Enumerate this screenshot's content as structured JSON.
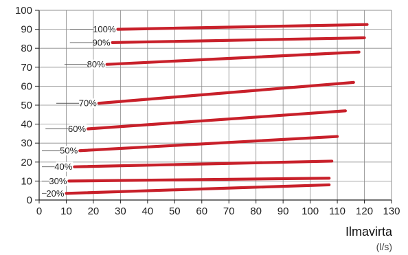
{
  "chart_data": {
    "type": "line",
    "xlabel": "Ilmavirta",
    "xunit": "(l/s)",
    "ylabel": "",
    "xlim": [
      0,
      130
    ],
    "ylim": [
      0,
      100
    ],
    "xticks": [
      0,
      10,
      20,
      30,
      40,
      50,
      60,
      70,
      80,
      90,
      100,
      110,
      120,
      130
    ],
    "yticks": [
      0,
      10,
      20,
      30,
      40,
      50,
      60,
      70,
      80,
      90,
      100
    ],
    "grid": true,
    "line_color": "#c8202a",
    "series": [
      {
        "name": "20%",
        "x": [
          10,
          107
        ],
        "y": [
          3.5,
          8.0
        ]
      },
      {
        "name": "30%",
        "x": [
          11,
          107
        ],
        "y": [
          10.0,
          11.5
        ]
      },
      {
        "name": "40%",
        "x": [
          13,
          108
        ],
        "y": [
          17.5,
          20.5
        ]
      },
      {
        "name": "50%",
        "x": [
          15,
          110
        ],
        "y": [
          26.0,
          33.5
        ]
      },
      {
        "name": "60%",
        "x": [
          18,
          113
        ],
        "y": [
          37.5,
          47.0
        ]
      },
      {
        "name": "70%",
        "x": [
          22,
          116
        ],
        "y": [
          51.0,
          62.0
        ]
      },
      {
        "name": "80%",
        "x": [
          25,
          118
        ],
        "y": [
          71.5,
          78.0
        ]
      },
      {
        "name": "90%",
        "x": [
          27,
          120
        ],
        "y": [
          83.0,
          85.5
        ]
      },
      {
        "name": "100%",
        "x": [
          29,
          121
        ],
        "y": [
          90.0,
          92.5
        ]
      }
    ]
  }
}
